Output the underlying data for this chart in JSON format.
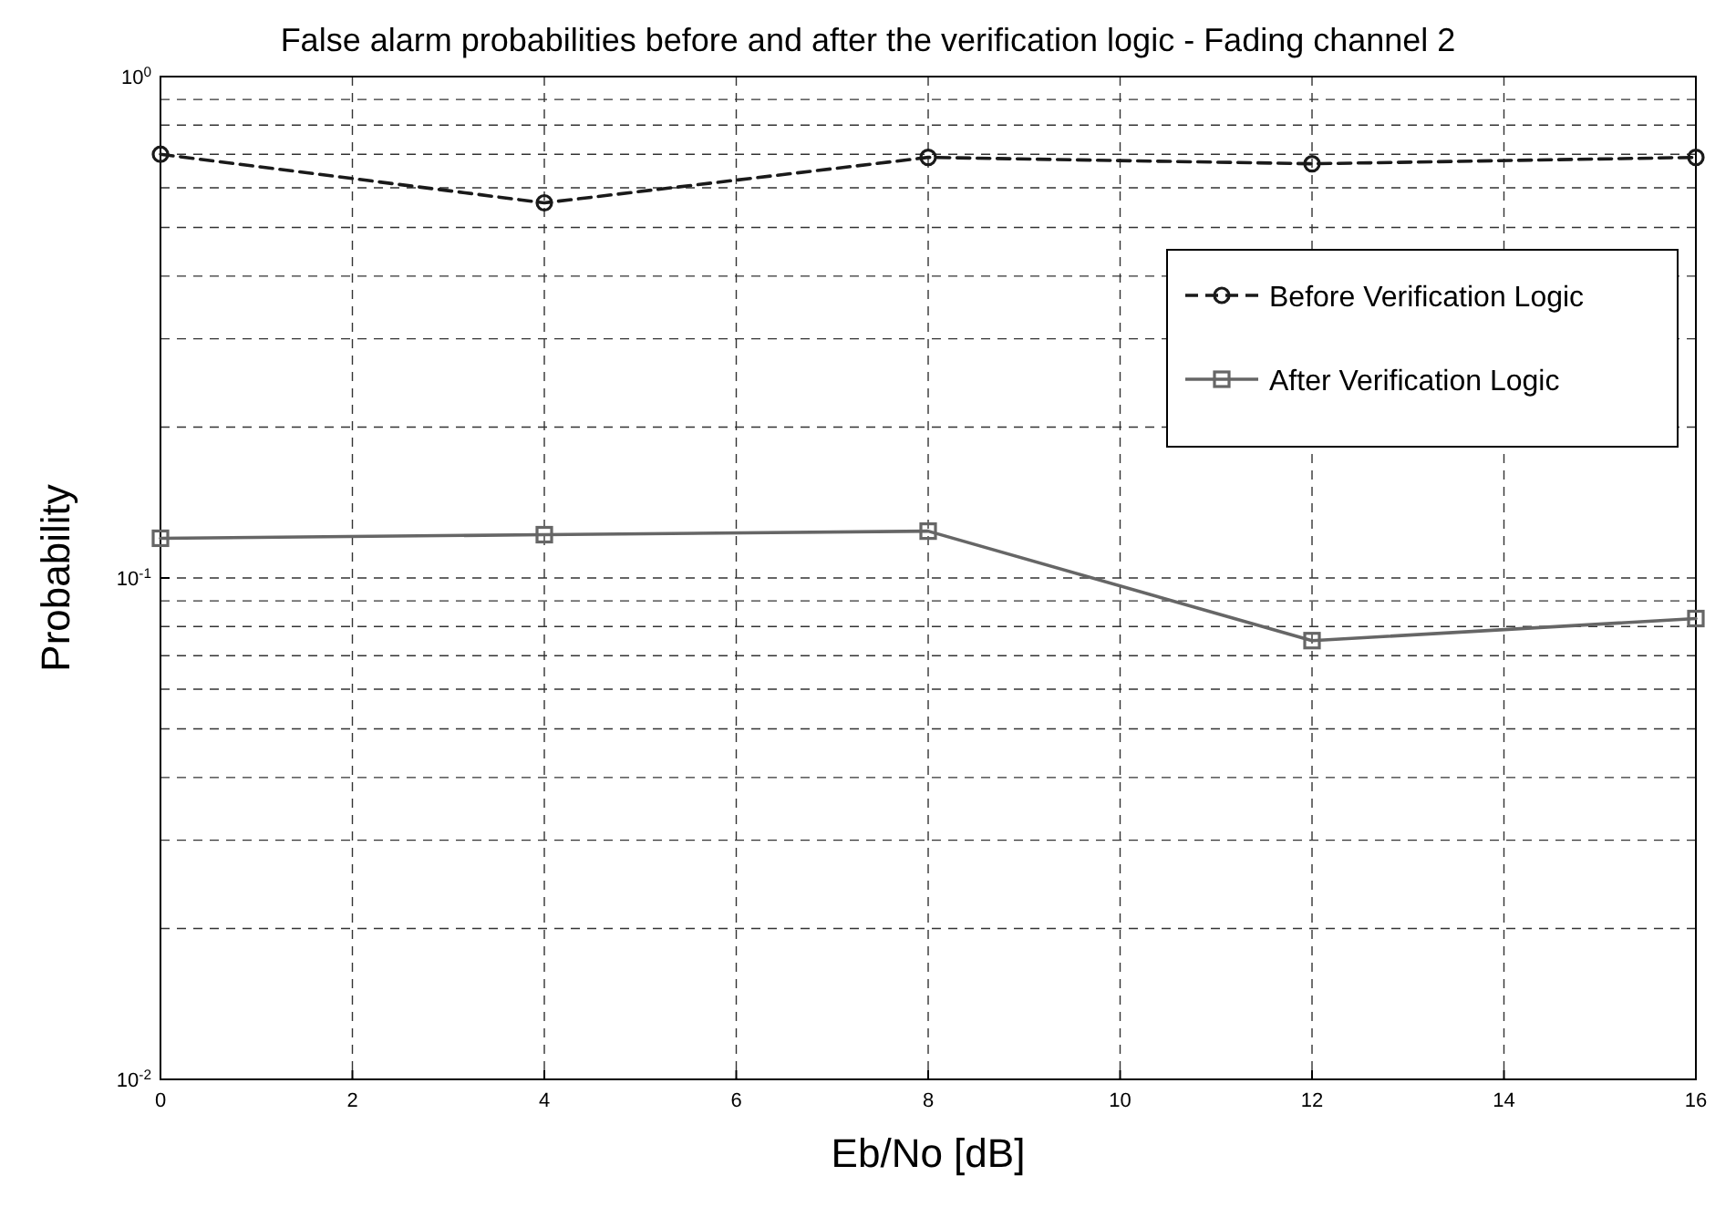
{
  "chart_data": {
    "type": "line",
    "title": "False alarm probabilities before and after the verification logic - Fading channel 2",
    "xlabel": "Eb/No [dB]",
    "ylabel": "Probability",
    "x": [
      0,
      4,
      8,
      12,
      16
    ],
    "series": [
      {
        "name": "Before Verification Logic",
        "color": "#1a1a1a",
        "values": [
          0.7,
          0.56,
          0.69,
          0.67,
          0.69
        ],
        "marker": "circle",
        "line_style": "dashed"
      },
      {
        "name": "After Verification Logic",
        "color": "#666666",
        "values": [
          0.12,
          0.122,
          0.124,
          0.075,
          0.083
        ],
        "marker": "square",
        "line_style": "solid"
      }
    ],
    "log": "y",
    "xlim": [
      0,
      16
    ],
    "xticks": [
      0,
      2,
      4,
      6,
      8,
      10,
      12,
      14,
      16
    ],
    "ylim": [
      0.01,
      1
    ],
    "yticks": [
      {
        "value": 1,
        "label": "10$^{0}$"
      },
      {
        "value": 0.1,
        "label": "10$^{-1}$"
      },
      {
        "value": 0.01,
        "label": "10$^{-2}$"
      }
    ],
    "grid": true,
    "legend": "top right"
  }
}
